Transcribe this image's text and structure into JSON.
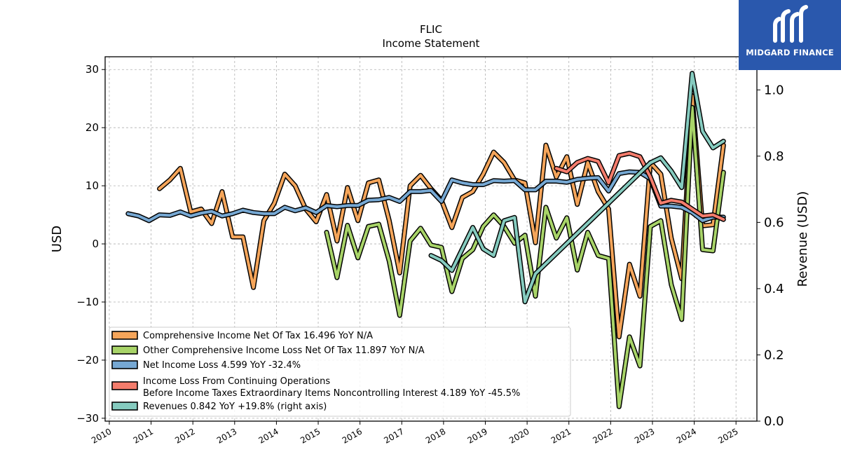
{
  "chart_data": {
    "type": "line",
    "title": "FLIC",
    "subtitle": "Income Statement",
    "ylabel": "USD",
    "ylabel_right": "Revenue (USD)",
    "ylim": [
      -30.5,
      32.2
    ],
    "ylim_right": [
      0.0,
      1.1
    ],
    "xlim": [
      2009.9,
      2025.5
    ],
    "yticks": [
      -30,
      -20,
      -10,
      0,
      10,
      20,
      30
    ],
    "yticks_right": [
      0.0,
      0.2,
      0.4,
      0.6,
      0.8,
      1.0
    ],
    "xticks": [
      2010,
      2011,
      2012,
      2013,
      2014,
      2015,
      2016,
      2017,
      2018,
      2019,
      2020,
      2021,
      2022,
      2023,
      2024,
      2025
    ],
    "grid": true,
    "legend_position": "lower-left",
    "series": [
      {
        "name": "Comprehensive Income Net Of Tax  16.496 YoY N/A",
        "color": "#f5a55a",
        "axis": "left",
        "points": [
          [
            2011.2,
            9.5
          ],
          [
            2011.45,
            11
          ],
          [
            2011.7,
            13
          ],
          [
            2011.95,
            5.5
          ],
          [
            2012.2,
            6
          ],
          [
            2012.45,
            3.5
          ],
          [
            2012.7,
            9
          ],
          [
            2012.95,
            1.2
          ],
          [
            2013.2,
            1.2
          ],
          [
            2013.45,
            -7.5
          ],
          [
            2013.7,
            4
          ],
          [
            2013.95,
            7
          ],
          [
            2014.2,
            12
          ],
          [
            2014.45,
            10
          ],
          [
            2014.7,
            6
          ],
          [
            2014.95,
            3.8
          ],
          [
            2015.2,
            8.5
          ],
          [
            2015.45,
            0.5
          ],
          [
            2015.7,
            9.7
          ],
          [
            2015.95,
            4
          ],
          [
            2016.2,
            10.5
          ],
          [
            2016.45,
            11
          ],
          [
            2016.7,
            4
          ],
          [
            2016.95,
            -5
          ],
          [
            2017.2,
            10
          ],
          [
            2017.45,
            11.8
          ],
          [
            2017.7,
            9.5
          ],
          [
            2017.95,
            7.5
          ],
          [
            2018.2,
            2.8
          ],
          [
            2018.45,
            8
          ],
          [
            2018.7,
            9
          ],
          [
            2018.95,
            12
          ],
          [
            2019.2,
            15.8
          ],
          [
            2019.45,
            14
          ],
          [
            2019.7,
            11
          ],
          [
            2019.95,
            10.5
          ],
          [
            2020.2,
            0.2
          ],
          [
            2020.45,
            17
          ],
          [
            2020.7,
            11.5
          ],
          [
            2020.95,
            15
          ],
          [
            2021.2,
            6.8
          ],
          [
            2021.45,
            14
          ],
          [
            2021.7,
            9
          ],
          [
            2021.95,
            6
          ],
          [
            2022.2,
            -16
          ],
          [
            2022.45,
            -3.5
          ],
          [
            2022.7,
            -9
          ],
          [
            2022.95,
            14
          ],
          [
            2023.2,
            12
          ],
          [
            2023.45,
            1
          ],
          [
            2023.7,
            -6
          ],
          [
            2023.95,
            25.5
          ],
          [
            2024.2,
            3.1
          ],
          [
            2024.45,
            3.3
          ],
          [
            2024.7,
            17
          ]
        ]
      },
      {
        "name": "Other Comprehensive Income Loss Net Of Tax  11.897 YoY N/A",
        "color": "#a8d468",
        "axis": "left",
        "points": [
          [
            2015.2,
            2
          ],
          [
            2015.45,
            -5.8
          ],
          [
            2015.7,
            3.2
          ],
          [
            2015.95,
            -2.4
          ],
          [
            2016.2,
            3
          ],
          [
            2016.45,
            3.4
          ],
          [
            2016.7,
            -3
          ],
          [
            2016.95,
            -12.3
          ],
          [
            2017.2,
            0.5
          ],
          [
            2017.45,
            2.7
          ],
          [
            2017.7,
            -0.2
          ],
          [
            2017.95,
            -0.6
          ],
          [
            2018.2,
            -8.2
          ],
          [
            2018.45,
            -2.5
          ],
          [
            2018.7,
            -1
          ],
          [
            2018.95,
            3
          ],
          [
            2019.2,
            5
          ],
          [
            2019.45,
            3
          ],
          [
            2019.7,
            0.1
          ],
          [
            2019.95,
            1.5
          ],
          [
            2020.2,
            -9
          ],
          [
            2020.45,
            6.3
          ],
          [
            2020.7,
            1
          ],
          [
            2020.95,
            4.5
          ],
          [
            2021.2,
            -4.5
          ],
          [
            2021.45,
            2
          ],
          [
            2021.7,
            -2
          ],
          [
            2021.95,
            -2.5
          ],
          [
            2022.2,
            -28
          ],
          [
            2022.45,
            -16
          ],
          [
            2022.7,
            -21
          ],
          [
            2022.95,
            3
          ],
          [
            2023.2,
            4
          ],
          [
            2023.45,
            -7
          ],
          [
            2023.7,
            -13
          ],
          [
            2023.95,
            23.5
          ],
          [
            2024.2,
            -1
          ],
          [
            2024.45,
            -1.2
          ],
          [
            2024.7,
            12.3
          ]
        ]
      },
      {
        "name": "Net Income Loss  4.599 YoY -32.4%",
        "color": "#76a8d3",
        "axis": "left",
        "points": [
          [
            2010.45,
            5.2
          ],
          [
            2010.7,
            4.8
          ],
          [
            2010.95,
            4
          ],
          [
            2011.2,
            5
          ],
          [
            2011.45,
            4.9
          ],
          [
            2011.7,
            5.5
          ],
          [
            2011.95,
            4.8
          ],
          [
            2012.2,
            5.3
          ],
          [
            2012.45,
            5.6
          ],
          [
            2012.7,
            4.8
          ],
          [
            2012.95,
            5.2
          ],
          [
            2013.2,
            5.8
          ],
          [
            2013.45,
            5.4
          ],
          [
            2013.7,
            5.2
          ],
          [
            2013.95,
            5.2
          ],
          [
            2014.2,
            6.3
          ],
          [
            2014.45,
            5.7
          ],
          [
            2014.7,
            6.2
          ],
          [
            2014.95,
            5.4
          ],
          [
            2015.2,
            6.6
          ],
          [
            2015.45,
            6.4
          ],
          [
            2015.7,
            6.6
          ],
          [
            2015.95,
            6.6
          ],
          [
            2016.2,
            7.5
          ],
          [
            2016.45,
            7.6
          ],
          [
            2016.7,
            8
          ],
          [
            2016.95,
            7.3
          ],
          [
            2017.2,
            9
          ],
          [
            2017.45,
            9
          ],
          [
            2017.7,
            9.2
          ],
          [
            2017.95,
            7.3
          ],
          [
            2018.2,
            11
          ],
          [
            2018.45,
            10.5
          ],
          [
            2018.7,
            10.2
          ],
          [
            2018.95,
            10.2
          ],
          [
            2019.2,
            10.9
          ],
          [
            2019.45,
            10.8
          ],
          [
            2019.7,
            10.9
          ],
          [
            2019.95,
            9.3
          ],
          [
            2020.2,
            9.3
          ],
          [
            2020.45,
            10.8
          ],
          [
            2020.7,
            10.8
          ],
          [
            2020.95,
            10.6
          ],
          [
            2021.2,
            11.1
          ],
          [
            2021.45,
            11.3
          ],
          [
            2021.7,
            11.4
          ],
          [
            2021.95,
            9.1
          ],
          [
            2022.2,
            12.1
          ],
          [
            2022.45,
            12.4
          ],
          [
            2022.7,
            12.3
          ],
          [
            2022.95,
            11.2
          ],
          [
            2023.2,
            6.5
          ],
          [
            2023.45,
            6.5
          ],
          [
            2023.7,
            6.3
          ],
          [
            2023.95,
            5.4
          ],
          [
            2024.2,
            4
          ],
          [
            2024.45,
            4.6
          ],
          [
            2024.7,
            4.6
          ]
        ]
      },
      {
        "name": "Income Loss From Continuing Operations\nBefore Income Taxes Extraordinary Items Noncontrolling Interest  4.189 YoY -45.5%",
        "color": "#f47c6c",
        "axis": "left",
        "points": [
          [
            2020.7,
            13
          ],
          [
            2020.95,
            12.4
          ],
          [
            2021.2,
            14
          ],
          [
            2021.45,
            14.7
          ],
          [
            2021.7,
            14.2
          ],
          [
            2021.95,
            10.5
          ],
          [
            2022.2,
            15.2
          ],
          [
            2022.45,
            15.6
          ],
          [
            2022.7,
            15
          ],
          [
            2022.95,
            11.5
          ],
          [
            2023.2,
            7
          ],
          [
            2023.45,
            7.5
          ],
          [
            2023.7,
            7.2
          ],
          [
            2023.95,
            6
          ],
          [
            2024.2,
            4.8
          ],
          [
            2024.45,
            5
          ],
          [
            2024.7,
            4.2
          ]
        ]
      },
      {
        "name": "Revenues  0.842 YoY +19.8% (right axis)",
        "color": "#85cbbf",
        "axis": "right",
        "points": [
          [
            2017.7,
            0.5
          ],
          [
            2017.95,
            0.485
          ],
          [
            2018.2,
            0.455
          ],
          [
            2018.45,
            0.52
          ],
          [
            2018.7,
            0.585
          ],
          [
            2018.95,
            0.52
          ],
          [
            2019.2,
            0.5
          ],
          [
            2019.45,
            0.605
          ],
          [
            2019.7,
            0.615
          ],
          [
            2019.95,
            0.36
          ],
          [
            2020.2,
            0.445
          ],
          [
            2022.95,
            0.78
          ],
          [
            2023.2,
            0.795
          ],
          [
            2023.45,
            0.755
          ],
          [
            2023.7,
            0.705
          ],
          [
            2023.95,
            1.05
          ],
          [
            2024.2,
            0.875
          ],
          [
            2024.45,
            0.825
          ],
          [
            2024.7,
            0.845
          ]
        ]
      }
    ]
  },
  "logo": {
    "name": "MIDGARD FINANCE"
  }
}
